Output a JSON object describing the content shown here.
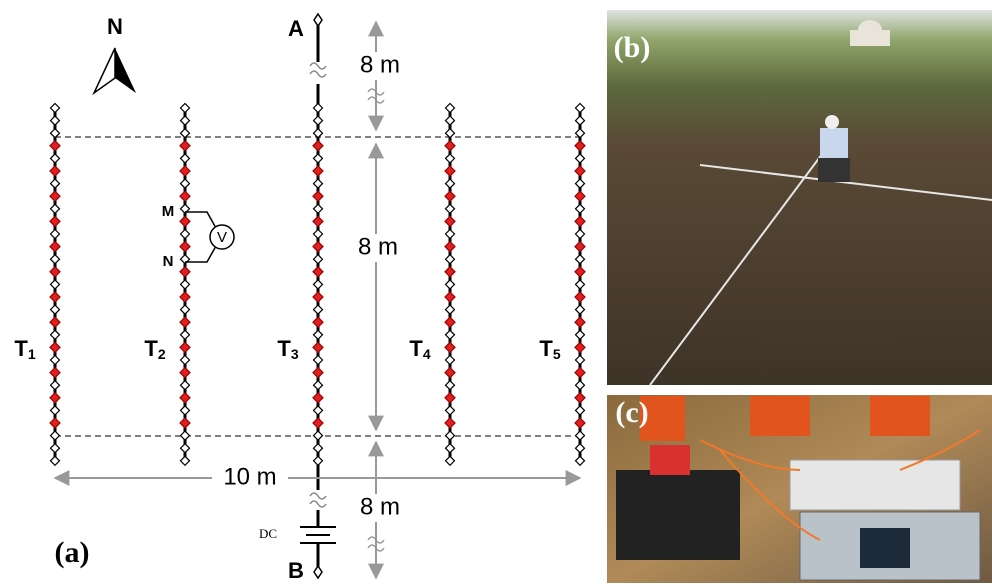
{
  "north": "N",
  "diagram": {
    "panel_label": "(a)",
    "endpoints": {
      "top": "A",
      "bottom": "B"
    },
    "lines": [
      {
        "label": "T",
        "subscript": "1"
      },
      {
        "label": "T",
        "subscript": "2"
      },
      {
        "label": "T",
        "subscript": "3"
      },
      {
        "label": "T",
        "subscript": "4"
      },
      {
        "label": "T",
        "subscript": "5"
      }
    ],
    "electrodes": {
      "potential_top": "M",
      "potential_bottom": "N",
      "meter": "V"
    },
    "distances": {
      "top": "8 m",
      "middle": "8 m",
      "bottom": "8 m",
      "width": "10 m"
    },
    "source": "DC"
  },
  "photos": {
    "field": "(b)",
    "instrument": "(c)"
  }
}
